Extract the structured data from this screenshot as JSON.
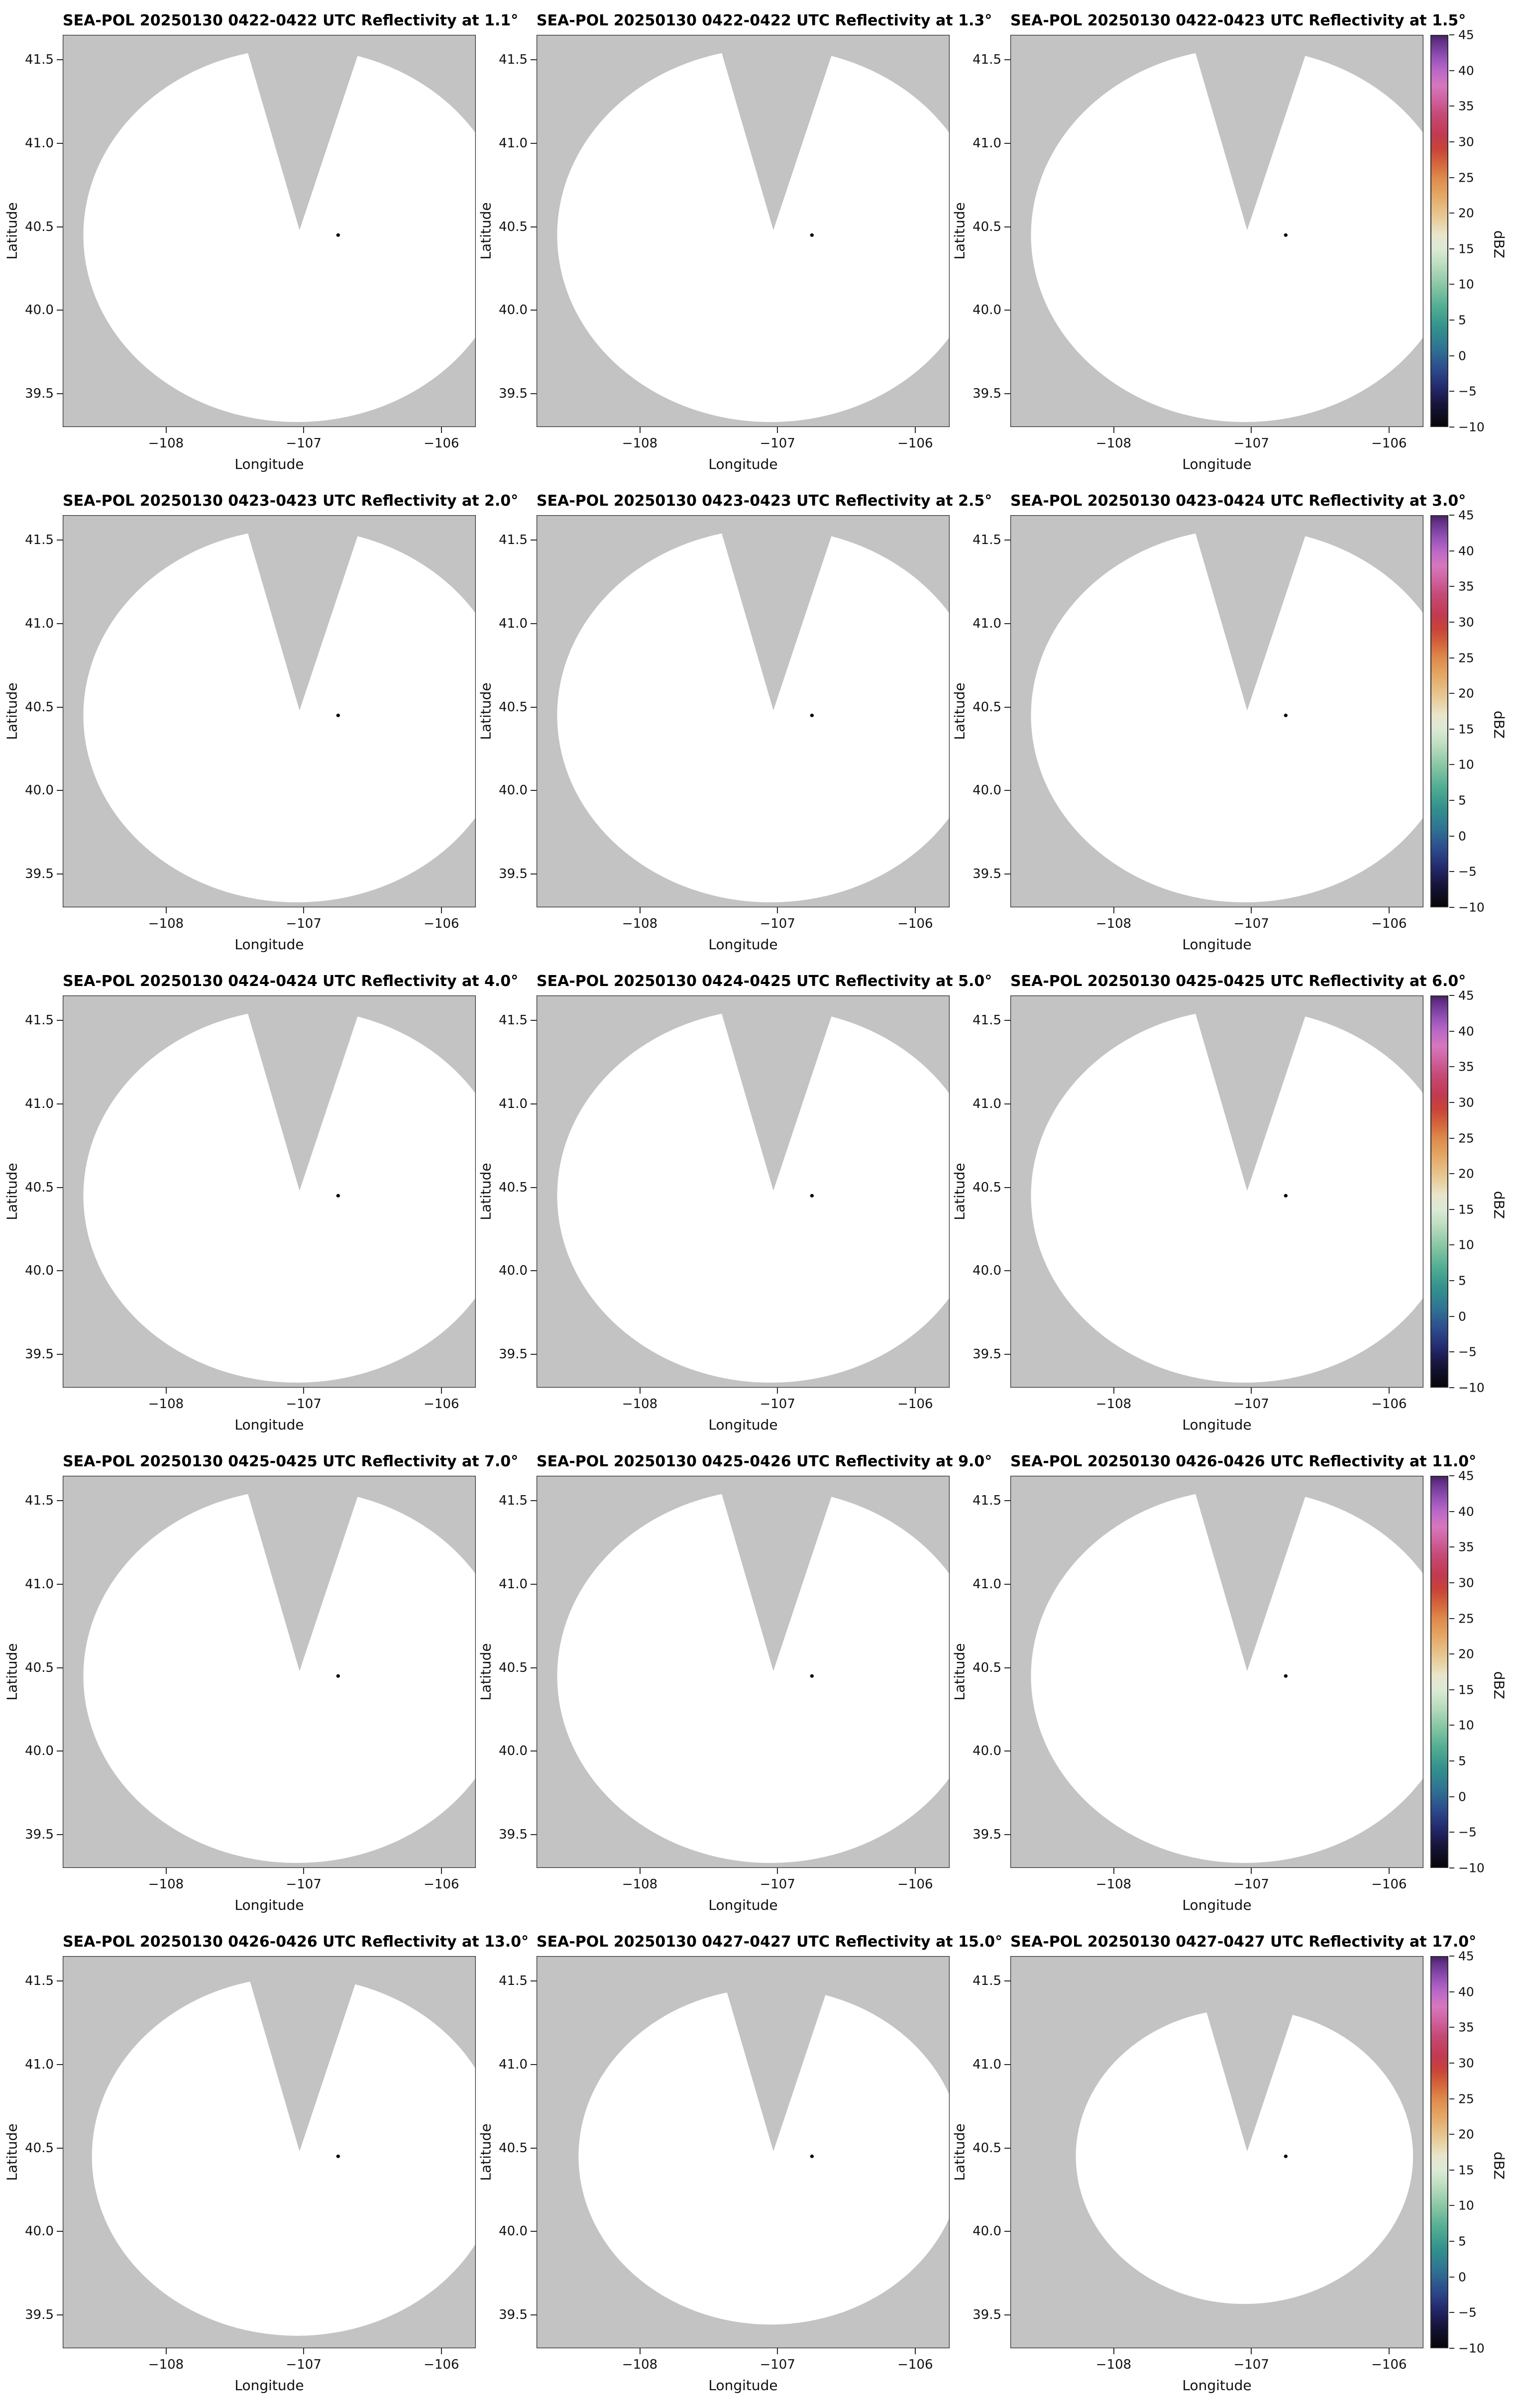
{
  "chart_data": {
    "type": "heatmap",
    "subtype": "radar-ppi-small-multiples",
    "layout": {
      "rows": 5,
      "cols": 3,
      "colorbar_per_row": true,
      "colorbar_position": "right"
    },
    "xlabel": "Longitude",
    "ylabel": "Latitude",
    "xlim": [
      -108.75,
      -105.75
    ],
    "ylim": [
      39.3,
      41.65
    ],
    "x_ticks": [
      -108,
      -107,
      -106
    ],
    "x_tick_labels": [
      "−108",
      "−107",
      "−106"
    ],
    "y_ticks": [
      39.5,
      40.0,
      40.5,
      41.0,
      41.5
    ],
    "y_tick_labels": [
      "39.5",
      "40.0",
      "40.5",
      "41.0",
      "41.5"
    ],
    "grid": false,
    "panel_background_color": "#c3c3c3",
    "coverage_fill_color": "#ffffff",
    "radar_marker": {
      "lon": -106.75,
      "lat": 40.45,
      "color": "#0a0a0a"
    },
    "coverage_ellipse": {
      "center_lon": -107.05,
      "center_lat": 40.45,
      "rx_deg": 1.55,
      "ry_deg": 1.12
    },
    "blocked_sector": {
      "apex": [
        -107.03,
        40.48
      ],
      "top_left_lon": -107.45,
      "top_right_lon": -106.55
    },
    "no_echo_note": "All 15 sweeps show an echo-free (blank white) scan area with a gray blocked sector north of the radar; gray denotes no radar coverage.",
    "panels": [
      {
        "title": "SEA-POL 20250130 0422-0422 UTC Reflectivity at 1.1°",
        "time_utc": "0422-0422",
        "elevation_deg": 1.1,
        "coverage_scale": 1.0
      },
      {
        "title": "SEA-POL 20250130 0422-0422 UTC Reflectivity at 1.3°",
        "time_utc": "0422-0422",
        "elevation_deg": 1.3,
        "coverage_scale": 1.0
      },
      {
        "title": "SEA-POL 20250130 0422-0423 UTC Reflectivity at 1.5°",
        "time_utc": "0422-0423",
        "elevation_deg": 1.5,
        "coverage_scale": 1.0
      },
      {
        "title": "SEA-POL 20250130 0423-0423 UTC Reflectivity at 2.0°",
        "time_utc": "0423-0423",
        "elevation_deg": 2.0,
        "coverage_scale": 1.0
      },
      {
        "title": "SEA-POL 20250130 0423-0423 UTC Reflectivity at 2.5°",
        "time_utc": "0423-0423",
        "elevation_deg": 2.5,
        "coverage_scale": 1.0
      },
      {
        "title": "SEA-POL 20250130 0423-0424 UTC Reflectivity at 3.0°",
        "time_utc": "0423-0424",
        "elevation_deg": 3.0,
        "coverage_scale": 1.0
      },
      {
        "title": "SEA-POL 20250130 0424-0424 UTC Reflectivity at 4.0°",
        "time_utc": "0424-0424",
        "elevation_deg": 4.0,
        "coverage_scale": 1.0
      },
      {
        "title": "SEA-POL 20250130 0424-0425 UTC Reflectivity at 5.0°",
        "time_utc": "0424-0425",
        "elevation_deg": 5.0,
        "coverage_scale": 1.0
      },
      {
        "title": "SEA-POL 20250130 0425-0425 UTC Reflectivity at 6.0°",
        "time_utc": "0425-0425",
        "elevation_deg": 6.0,
        "coverage_scale": 1.0
      },
      {
        "title": "SEA-POL 20250130 0425-0425 UTC Reflectivity at 7.0°",
        "time_utc": "0425-0425",
        "elevation_deg": 7.0,
        "coverage_scale": 1.0
      },
      {
        "title": "SEA-POL 20250130 0425-0426 UTC Reflectivity at 9.0°",
        "time_utc": "0425-0426",
        "elevation_deg": 9.0,
        "coverage_scale": 1.0
      },
      {
        "title": "SEA-POL 20250130 0426-0426 UTC Reflectivity at 11.0°",
        "time_utc": "0426-0426",
        "elevation_deg": 11.0,
        "coverage_scale": 1.0
      },
      {
        "title": "SEA-POL 20250130 0426-0426 UTC Reflectivity at 13.0°",
        "time_utc": "0426-0426",
        "elevation_deg": 13.0,
        "coverage_scale": 0.96
      },
      {
        "title": "SEA-POL 20250130 0427-0427 UTC Reflectivity at 15.0°",
        "time_utc": "0427-0427",
        "elevation_deg": 15.0,
        "coverage_scale": 0.9
      },
      {
        "title": "SEA-POL 20250130 0427-0427 UTC Reflectivity at 17.0°",
        "time_utc": "0427-0427",
        "elevation_deg": 17.0,
        "coverage_scale": 0.79
      }
    ],
    "colorbar": {
      "label": "dBZ",
      "min": -10,
      "max": 45,
      "ticks": [
        45,
        40,
        35,
        30,
        25,
        20,
        15,
        10,
        5,
        0,
        -5,
        -10
      ],
      "tick_labels": [
        "45",
        "40",
        "35",
        "30",
        "25",
        "20",
        "15",
        "10",
        "5",
        "0",
        "−5",
        "−10"
      ],
      "stops": [
        {
          "value": -10,
          "color": "#060608"
        },
        {
          "value": -7,
          "color": "#15153a"
        },
        {
          "value": -5,
          "color": "#222465"
        },
        {
          "value": -2,
          "color": "#2c4a8c"
        },
        {
          "value": 1,
          "color": "#2f7492"
        },
        {
          "value": 4,
          "color": "#33938d"
        },
        {
          "value": 7,
          "color": "#55af93"
        },
        {
          "value": 10,
          "color": "#8cc8a5"
        },
        {
          "value": 13,
          "color": "#c0dfc2"
        },
        {
          "value": 15,
          "color": "#dcead5"
        },
        {
          "value": 17,
          "color": "#e9e5cb"
        },
        {
          "value": 19,
          "color": "#e7cf9e"
        },
        {
          "value": 22,
          "color": "#e5ad6c"
        },
        {
          "value": 25,
          "color": "#de8a4c"
        },
        {
          "value": 27,
          "color": "#d4653c"
        },
        {
          "value": 29,
          "color": "#c84538"
        },
        {
          "value": 31,
          "color": "#c03a50"
        },
        {
          "value": 34,
          "color": "#c64a78"
        },
        {
          "value": 36,
          "color": "#d0619f"
        },
        {
          "value": 38,
          "color": "#d677bd"
        },
        {
          "value": 40,
          "color": "#bc68c8"
        },
        {
          "value": 42,
          "color": "#9551b6"
        },
        {
          "value": 44,
          "color": "#67348c"
        },
        {
          "value": 45,
          "color": "#4a2268"
        }
      ]
    }
  }
}
